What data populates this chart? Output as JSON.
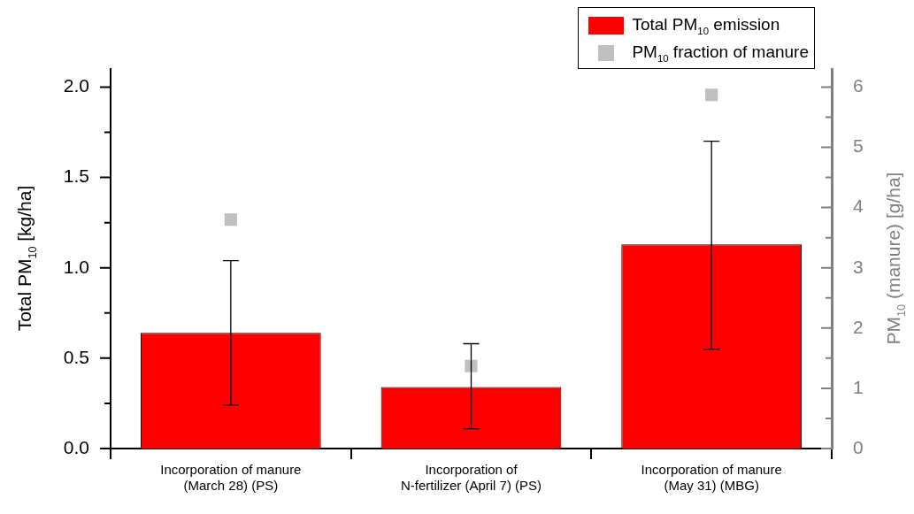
{
  "chart_data": {
    "type": "bar",
    "categories": [
      "Incorporation of manure (March 28) (PS)",
      "Incorporation of N-fertilizer (April 7) (PS)",
      "Incorporation of manure (May 31) (MBG)"
    ],
    "ylabel": "Total PM$_{10}$ [kg/ha]",
    "y2label": "PM$_{10}$ (manure) [g/ha]",
    "ylim": [
      0,
      2.1
    ],
    "yticks": [
      {
        "value": 0,
        "label": "0.0"
      },
      {
        "value": 0.25,
        "label": null
      },
      {
        "value": 0.5,
        "label": "0.5"
      },
      {
        "value": 0.75,
        "label": null
      },
      {
        "value": 1,
        "label": "1.0"
      },
      {
        "value": 1.25,
        "label": null
      },
      {
        "value": 1.5,
        "label": "1.5"
      },
      {
        "value": 1.75,
        "label": null
      },
      {
        "value": 2,
        "label": "2.0"
      }
    ],
    "y2lim": [
      0,
      6.3
    ],
    "y2ticks": [
      0,
      {
        "value": 0.5,
        "label": null
      },
      1,
      {
        "value": 1.5,
        "label": null
      },
      2,
      {
        "value": 2.5,
        "label": null
      },
      3,
      {
        "value": 3.5,
        "label": null
      },
      4,
      {
        "value": 4.5,
        "label": null
      },
      5,
      {
        "value": 5.5,
        "label": null
      },
      6
    ],
    "legend": "top right",
    "marker": "square",
    "series": [
      {
        "name": "Total PM$_{10}$ emission",
        "color": "#ff0000",
        "values": [
          0.64,
          0.34,
          1.13
        ],
        "errors": [
          [
            0.24,
            1.04
          ],
          [
            0.11,
            0.58
          ],
          [
            0.55,
            1.7
          ]
        ]
      },
      {
        "name": "PM$_{10}$ fraction of manure",
        "type": "scatter",
        "axis": "y2",
        "color": "#c0c0c0",
        "values": [
          3.8,
          1.37,
          5.87
        ]
      }
    ]
  }
}
